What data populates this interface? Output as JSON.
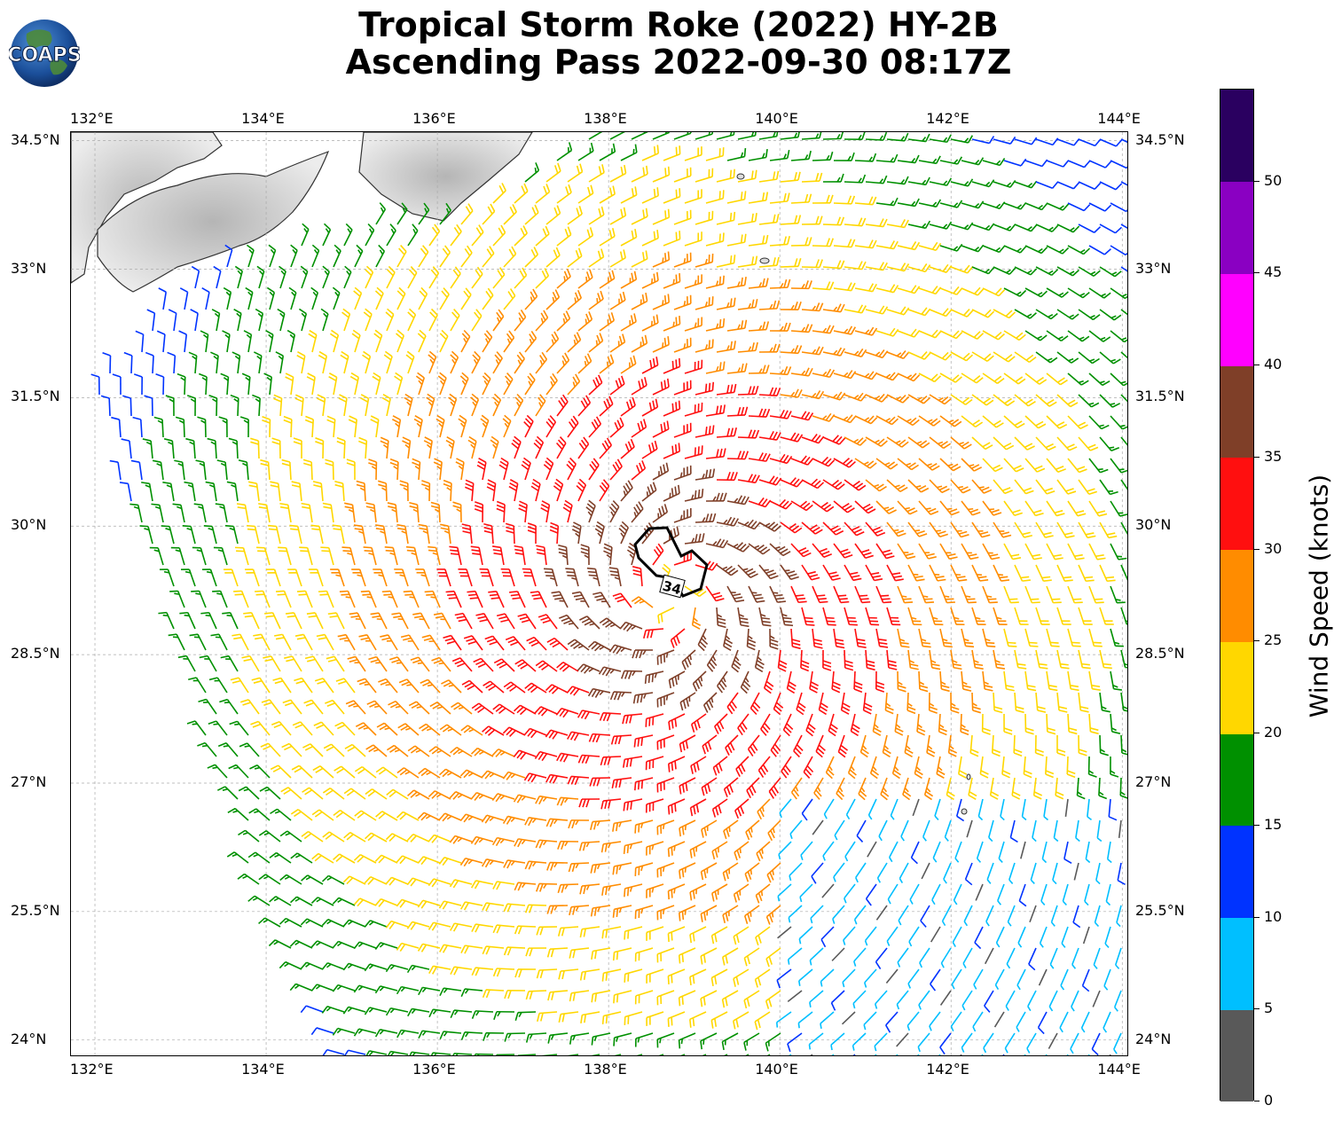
{
  "title_line1": "Tropical Storm Roke (2022) HY-2B",
  "title_line2": "Ascending Pass 2022-09-30 08:17Z",
  "logo_text": "COAPS",
  "lon_labels": [
    "132°E",
    "134°E",
    "136°E",
    "138°E",
    "140°E",
    "142°E",
    "144°E"
  ],
  "lat_labels": [
    "34.5°N",
    "33°N",
    "31.5°N",
    "30°N",
    "28.5°N",
    "27°N",
    "25.5°N",
    "24°N"
  ],
  "contour_label": "34",
  "colorbar": {
    "label": "Wind Speed (knots)",
    "ticks": [
      "0",
      "5",
      "10",
      "15",
      "20",
      "25",
      "30",
      "35",
      "40",
      "45",
      "50"
    ],
    "colors": [
      "#595959",
      "#00bfff",
      "#0033ff",
      "#009000",
      "#ffd700",
      "#ff8c00",
      "#ff0f0f",
      "#7f3f28",
      "#ff00ff",
      "#8a00c2",
      "#2a0060"
    ]
  },
  "map_extent": {
    "lon": [
      131.72,
      144.08
    ],
    "lat": [
      23.8,
      34.6
    ]
  },
  "storm_center": {
    "lon": 138.75,
    "lat": 29.2
  }
}
